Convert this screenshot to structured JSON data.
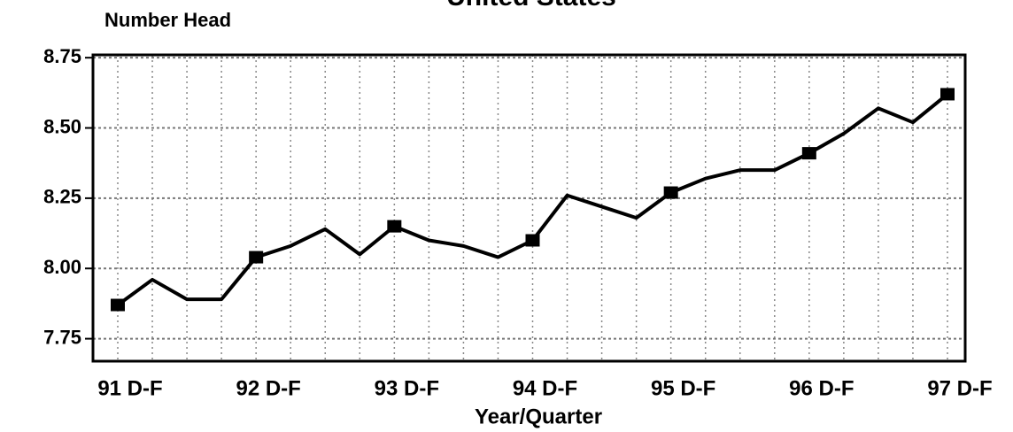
{
  "chart_data": {
    "type": "line",
    "title": "United States",
    "y_label": "Number Head",
    "x_label": "Year/Quarter",
    "categories": [
      "91 D-F",
      null,
      null,
      null,
      "92 D-F",
      null,
      null,
      null,
      "93 D-F",
      null,
      null,
      null,
      "94 D-F",
      null,
      null,
      null,
      "95 D-F",
      null,
      null,
      null,
      "96 D-F",
      null,
      null,
      null,
      "97 D-F"
    ],
    "series": [
      {
        "name": "United States",
        "color": "#000000",
        "values": [
          7.87,
          7.96,
          7.89,
          7.89,
          8.04,
          8.08,
          8.14,
          8.05,
          8.15,
          8.1,
          8.08,
          8.04,
          8.1,
          8.26,
          8.22,
          8.18,
          8.27,
          8.32,
          8.35,
          8.35,
          8.41,
          8.48,
          8.57,
          8.52,
          8.62
        ]
      }
    ],
    "ylim": [
      7.67,
      8.76
    ],
    "yticks": [
      {
        "value": 7.75,
        "label": "7.75"
      },
      {
        "value": 8,
        "label": "8.00"
      },
      {
        "value": 8.25,
        "label": "8.25"
      },
      {
        "value": 8.5,
        "label": "8.50"
      },
      {
        "value": 8.75,
        "label": "8.75"
      }
    ],
    "grid": true
  }
}
